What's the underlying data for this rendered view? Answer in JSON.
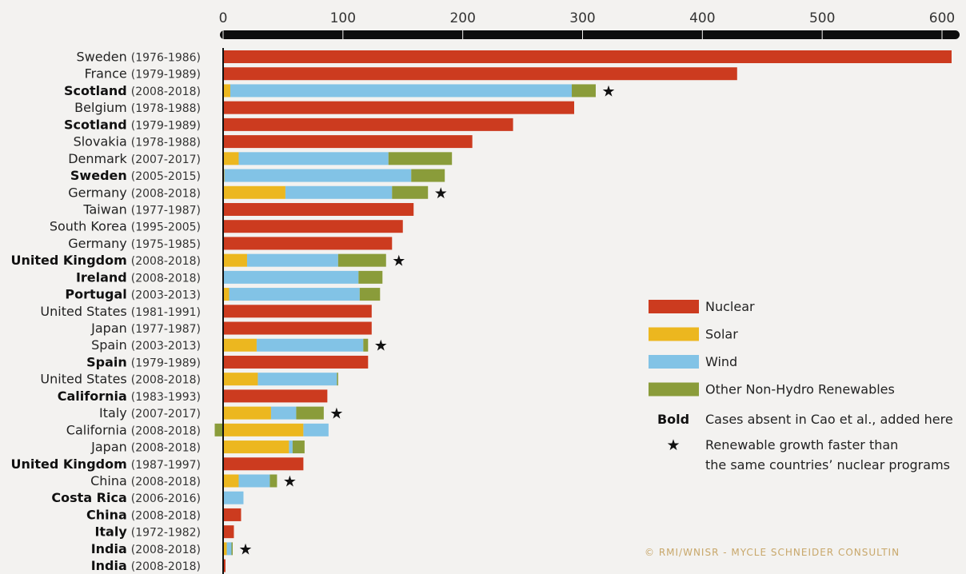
{
  "chart_data": {
    "type": "bar",
    "orientation": "horizontal",
    "stacked": true,
    "x_ticks": [
      "0",
      "100",
      "200",
      "300",
      "400",
      "500",
      "600"
    ],
    "xlim": [
      0,
      600
    ],
    "grid": false,
    "legend_position": "right",
    "colors": {
      "Nuclear": "#cc3b1f",
      "Solar": "#ecb71f",
      "Wind": "#82c3e6",
      "Other Non-Hydro Renewables": "#8a9c3a"
    },
    "series": [
      {
        "name": "Nuclear"
      },
      {
        "name": "Solar"
      },
      {
        "name": "Wind"
      },
      {
        "name": "Other Non-Hydro Renewables"
      }
    ],
    "categories": [
      {
        "name": "Sweden",
        "years": "(1976-1986)",
        "bold": false,
        "star": false,
        "values": {
          "Nuclear": 608
        }
      },
      {
        "name": "France",
        "years": "(1979-1989)",
        "bold": false,
        "star": false,
        "values": {
          "Nuclear": 429
        }
      },
      {
        "name": "Scotland",
        "years": "(2008-2018)",
        "bold": true,
        "star": true,
        "values": {
          "Solar": 6,
          "Wind": 285,
          "Other Non-Hydro Renewables": 20
        }
      },
      {
        "name": "Belgium",
        "years": "(1978-1988)",
        "bold": false,
        "star": false,
        "values": {
          "Nuclear": 293
        }
      },
      {
        "name": "Scotland",
        "years": "(1979-1989)",
        "bold": true,
        "star": false,
        "values": {
          "Nuclear": 242
        }
      },
      {
        "name": "Slovakia",
        "years": "(1978-1988)",
        "bold": false,
        "star": false,
        "values": {
          "Nuclear": 208
        }
      },
      {
        "name": "Denmark",
        "years": "(2007-2017)",
        "bold": false,
        "star": false,
        "values": {
          "Solar": 13,
          "Wind": 125,
          "Other Non-Hydro Renewables": 53
        }
      },
      {
        "name": "Sweden",
        "years": "(2005-2015)",
        "bold": true,
        "star": false,
        "values": {
          "Solar": 1,
          "Wind": 156,
          "Other Non-Hydro Renewables": 28
        }
      },
      {
        "name": "Germany",
        "years": "(2008-2018)",
        "bold": false,
        "star": true,
        "values": {
          "Solar": 52,
          "Wind": 89,
          "Other Non-Hydro Renewables": 30
        }
      },
      {
        "name": "Taiwan",
        "years": "(1977-1987)",
        "bold": false,
        "star": false,
        "values": {
          "Nuclear": 159
        }
      },
      {
        "name": "South Korea",
        "years": "(1995-2005)",
        "bold": false,
        "star": false,
        "values": {
          "Nuclear": 150
        }
      },
      {
        "name": "Germany",
        "years": "(1975-1985)",
        "bold": false,
        "star": false,
        "values": {
          "Nuclear": 141
        }
      },
      {
        "name": "United Kingdom",
        "years": "(2008-2018)",
        "bold": true,
        "star": true,
        "values": {
          "Solar": 20,
          "Wind": 76,
          "Other Non-Hydro Renewables": 40
        }
      },
      {
        "name": "Ireland",
        "years": "(2008-2018)",
        "bold": true,
        "star": false,
        "values": {
          "Wind": 113,
          "Other Non-Hydro Renewables": 20
        }
      },
      {
        "name": "Portugal",
        "years": "(2003-2013)",
        "bold": true,
        "star": false,
        "values": {
          "Solar": 5,
          "Wind": 109,
          "Other Non-Hydro Renewables": 17
        }
      },
      {
        "name": "United States",
        "years": "(1981-1991)",
        "bold": false,
        "star": false,
        "values": {
          "Nuclear": 124
        }
      },
      {
        "name": "Japan",
        "years": "(1977-1987)",
        "bold": false,
        "star": false,
        "values": {
          "Nuclear": 124
        }
      },
      {
        "name": "Spain",
        "years": "(2003-2013)",
        "bold": false,
        "star": true,
        "values": {
          "Solar": 28,
          "Wind": 89,
          "Other Non-Hydro Renewables": 4
        }
      },
      {
        "name": "Spain",
        "years": "(1979-1989)",
        "bold": true,
        "star": false,
        "values": {
          "Nuclear": 121
        }
      },
      {
        "name": "United States",
        "years": "(2008-2018)",
        "bold": false,
        "star": false,
        "values": {
          "Solar": 29,
          "Wind": 66,
          "Other Non-Hydro Renewables": 1
        }
      },
      {
        "name": "California",
        "years": "(1983-1993)",
        "bold": true,
        "star": false,
        "values": {
          "Nuclear": 87
        }
      },
      {
        "name": "Italy",
        "years": "(2007-2017)",
        "bold": false,
        "star": true,
        "values": {
          "Solar": 40,
          "Wind": 21,
          "Other Non-Hydro Renewables": 23
        }
      },
      {
        "name": "California",
        "years": "(2008-2018)",
        "bold": false,
        "star": false,
        "values": {
          "Solar": 67,
          "Wind": 21,
          "Other Non-Hydro Renewables": -7
        }
      },
      {
        "name": "Japan",
        "years": "(2008-2018)",
        "bold": false,
        "star": false,
        "values": {
          "Solar": 55,
          "Wind": 3,
          "Other Non-Hydro Renewables": 10
        }
      },
      {
        "name": "United Kingdom",
        "years": "(1987-1997)",
        "bold": true,
        "star": false,
        "values": {
          "Nuclear": 67
        }
      },
      {
        "name": "China",
        "years": "(2008-2018)",
        "bold": false,
        "star": true,
        "values": {
          "Solar": 13,
          "Wind": 26,
          "Other Non-Hydro Renewables": 6
        }
      },
      {
        "name": "Costa Rica",
        "years": "(2006-2016)",
        "bold": true,
        "star": false,
        "values": {
          "Wind": 17
        }
      },
      {
        "name": "China",
        "years": "(2008-2018)",
        "bold": true,
        "star": false,
        "values": {
          "Nuclear": 15
        }
      },
      {
        "name": "Italy",
        "years": "(1972-1982)",
        "bold": true,
        "star": false,
        "values": {
          "Nuclear": 9
        }
      },
      {
        "name": "India",
        "years": "(2008-2018)",
        "bold": true,
        "star": true,
        "values": {
          "Solar": 3,
          "Wind": 4,
          "Other Non-Hydro Renewables": 1
        }
      },
      {
        "name": "India",
        "years": "(2008-2018)",
        "bold": true,
        "star": false,
        "values": {
          "Nuclear": 2
        }
      }
    ]
  },
  "legend": {
    "items": [
      "Nuclear",
      "Solar",
      "Wind",
      "Other Non-Hydro Renewables"
    ],
    "bold_key": "Bold",
    "bold_text": "Cases absent in Cao et al., added here",
    "star_key": "★",
    "star_text_line1": "Renewable growth faster than",
    "star_text_line2": "the same countries’ nuclear programs"
  },
  "credit": "© RMI/WNISR - MYCLE SCHNEIDER CONSULTIN"
}
